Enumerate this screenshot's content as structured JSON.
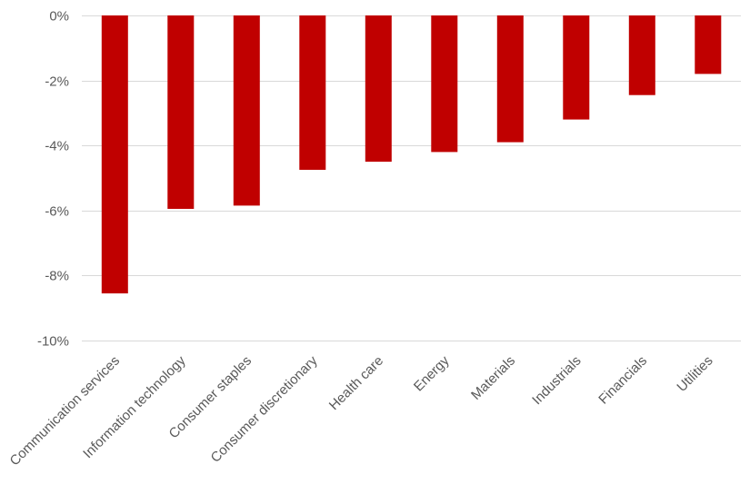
{
  "chart_data": {
    "type": "bar",
    "categories": [
      "Communication services",
      "Information technology",
      "Consumer staples",
      "Consumer discretionary",
      "Health care",
      "Energy",
      "Materials",
      "Industrials",
      "Financials",
      "Utilities"
    ],
    "values": [
      -8.55,
      -5.95,
      -5.85,
      -4.75,
      -4.5,
      -4.2,
      -3.9,
      -3.2,
      -2.45,
      -1.8
    ],
    "yticks": [
      {
        "value": 0,
        "label": "0%"
      },
      {
        "value": -2,
        "label": "-2%"
      },
      {
        "value": -4,
        "label": "-4%"
      },
      {
        "value": -6,
        "label": "-6%"
      },
      {
        "value": -8,
        "label": "-8%"
      },
      {
        "value": -10,
        "label": "-10%"
      }
    ],
    "ylim": [
      -10,
      0
    ],
    "xlabel": "",
    "ylabel": "",
    "title": "",
    "grid": true,
    "bar_color": "#c00000"
  }
}
